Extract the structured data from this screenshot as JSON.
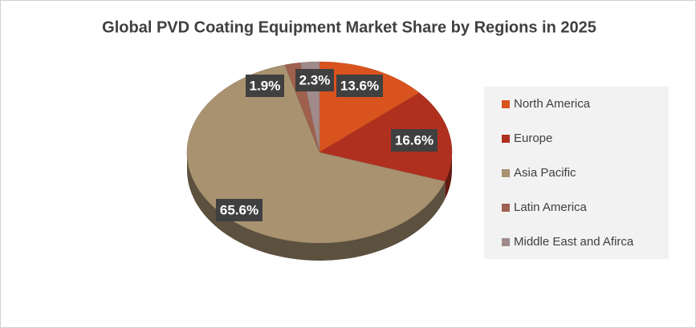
{
  "chart_data": {
    "type": "pie",
    "title": "Global PVD Coating Equipment Market Share by Regions in 2025",
    "categories": [
      "North America",
      "Europe",
      "Asia Pacific",
      "Latin America",
      "Middle East and Afirca"
    ],
    "values": [
      13.6,
      16.6,
      65.6,
      1.9,
      2.3
    ],
    "value_labels": [
      "13.6%",
      "16.6%",
      "65.6%",
      "1.9%",
      "2.3%"
    ],
    "colors": [
      "#d9531e",
      "#b0301f",
      "#a89270",
      "#a0604e",
      "#a08a8a"
    ],
    "legend": "right"
  }
}
